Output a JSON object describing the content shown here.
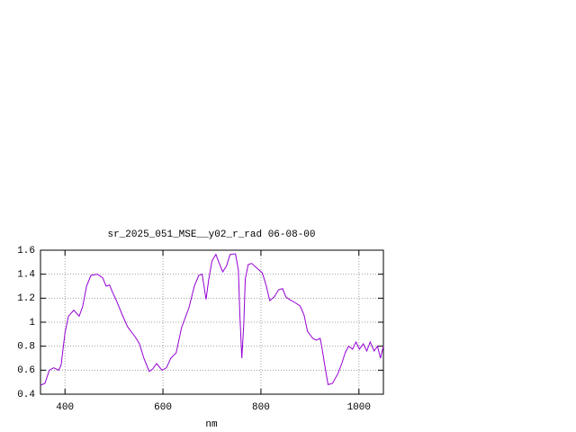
{
  "chart_data": {
    "type": "line",
    "title": "sr_2025_051_MSE__y02_r_rad 06-08-00",
    "x_label": "nm",
    "xlim": [
      350,
      1050
    ],
    "xticks": [
      400,
      600,
      800,
      1000
    ],
    "ylim": [
      0.4,
      1.6
    ],
    "yticks": [
      0.4,
      0.6,
      0.8,
      1,
      1.2,
      1.4,
      1.6
    ],
    "grid": true,
    "series": [
      {
        "color": "#9400d3",
        "x": [
          350,
          359,
          368,
          377,
          387,
          392,
          400,
          407,
          418,
          429,
          436,
          444,
          453,
          466,
          477,
          484,
          491,
          497,
          506,
          517,
          528,
          543,
          552,
          561,
          572,
          579,
          587,
          598,
          607,
          616,
          627,
          638,
          653,
          664,
          673,
          680,
          688,
          693,
          700,
          708,
          715,
          722,
          730,
          737,
          748,
          754,
          757,
          761,
          765,
          768,
          774,
          781,
          792,
          803,
          811,
          818,
          827,
          836,
          844,
          851,
          858,
          869,
          880,
          888,
          895,
          906,
          913,
          921,
          924,
          932,
          937,
          946,
          957,
          965,
          972,
          979,
          987,
          994,
          1001,
          1009,
          1016,
          1023,
          1031,
          1038,
          1044,
          1050
        ],
        "values": [
          0.475,
          0.49,
          0.6,
          0.62,
          0.6,
          0.64,
          0.91,
          1.05,
          1.1,
          1.05,
          1.13,
          1.3,
          1.39,
          1.4,
          1.37,
          1.3,
          1.31,
          1.25,
          1.17,
          1.06,
          0.96,
          0.88,
          0.82,
          0.7,
          0.59,
          0.61,
          0.655,
          0.6,
          0.62,
          0.7,
          0.745,
          0.955,
          1.12,
          1.3,
          1.39,
          1.4,
          1.19,
          1.345,
          1.51,
          1.565,
          1.49,
          1.42,
          1.47,
          1.565,
          1.57,
          1.435,
          1.06,
          0.7,
          0.985,
          1.36,
          1.48,
          1.49,
          1.45,
          1.41,
          1.3,
          1.18,
          1.21,
          1.27,
          1.28,
          1.21,
          1.19,
          1.165,
          1.135,
          1.06,
          0.925,
          0.865,
          0.85,
          0.865,
          0.8,
          0.6,
          0.48,
          0.49,
          0.57,
          0.655,
          0.745,
          0.8,
          0.775,
          0.835,
          0.775,
          0.82,
          0.76,
          0.835,
          0.76,
          0.8,
          0.7,
          0.8
        ]
      }
    ]
  }
}
